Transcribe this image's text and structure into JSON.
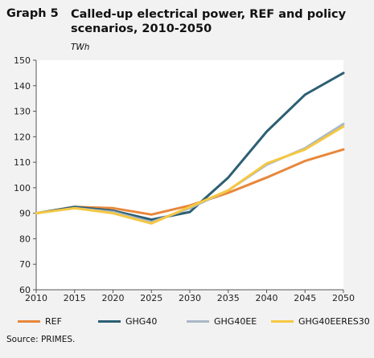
{
  "header": {
    "graph_number": "Graph 5",
    "title": "Called-up electrical power, REF and policy scenarios, 2010-2050",
    "unit": "TWh"
  },
  "source": "Source: PRIMES.",
  "chart_data": {
    "type": "line",
    "x": [
      2010,
      2015,
      2020,
      2025,
      2030,
      2035,
      2040,
      2045,
      2050
    ],
    "ylim": [
      60,
      150
    ],
    "yticks": [
      60,
      70,
      80,
      90,
      100,
      110,
      120,
      130,
      140,
      150
    ],
    "xlabel": "",
    "ylabel": "",
    "grid": false,
    "legend_position": "bottom",
    "series": [
      {
        "name": "REF",
        "color": "#e8873a",
        "values": [
          90,
          92.5,
          92,
          89.5,
          93,
          98,
          104,
          110.5,
          115
        ]
      },
      {
        "name": "GHG40",
        "color": "#2d5f73",
        "values": [
          90,
          92.5,
          91,
          87.5,
          90.5,
          104,
          122,
          136.5,
          145
        ]
      },
      {
        "name": "GHG40EE",
        "color": "#a9b8c6",
        "values": [
          90,
          92,
          90.5,
          86.5,
          92,
          99,
          109,
          115.5,
          125
        ]
      },
      {
        "name": "GHG40EERES30",
        "color": "#f5c842",
        "values": [
          90,
          92,
          90,
          86,
          92.5,
          99,
          109.5,
          115,
          124
        ]
      }
    ]
  }
}
